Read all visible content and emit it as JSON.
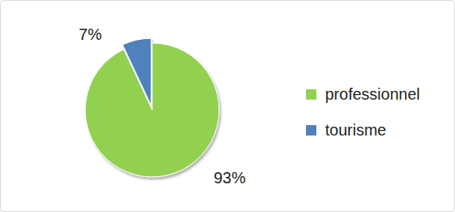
{
  "chart_data": {
    "type": "pie",
    "categories": [
      "professionnel",
      "tourisme"
    ],
    "values": [
      93,
      7
    ],
    "value_labels": [
      "93%",
      "7%"
    ],
    "colors": [
      "#92d050",
      "#4f81bd"
    ],
    "data_labels": true,
    "legend": "right"
  }
}
